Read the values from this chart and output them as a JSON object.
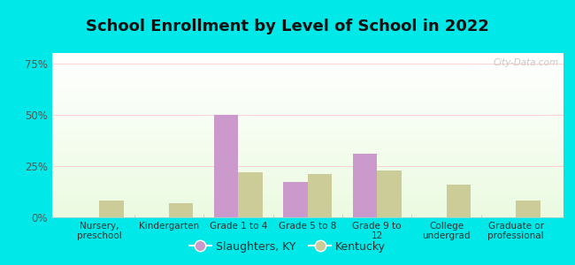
{
  "title": "School Enrollment by Level of School in 2022",
  "categories": [
    "Nursery,\npreschool",
    "Kindergarten",
    "Grade 1 to 4",
    "Grade 5 to 8",
    "Grade 9 to\n12",
    "College\nundergrad",
    "Graduate or\nprofessional"
  ],
  "slaughters": [
    0,
    0,
    50,
    17,
    31,
    0,
    0
  ],
  "kentucky": [
    8,
    7,
    22,
    21,
    23,
    16,
    8
  ],
  "slaughters_color": "#cc99cc",
  "kentucky_color": "#cccc99",
  "bg_outer": "#00e8e8",
  "yticks": [
    0,
    25,
    50,
    75
  ],
  "ylim": [
    0,
    80
  ],
  "title_fontsize": 13,
  "bar_width": 0.35,
  "legend_labels": [
    "Slaughters, KY",
    "Kentucky"
  ],
  "watermark": "City-Data.com"
}
